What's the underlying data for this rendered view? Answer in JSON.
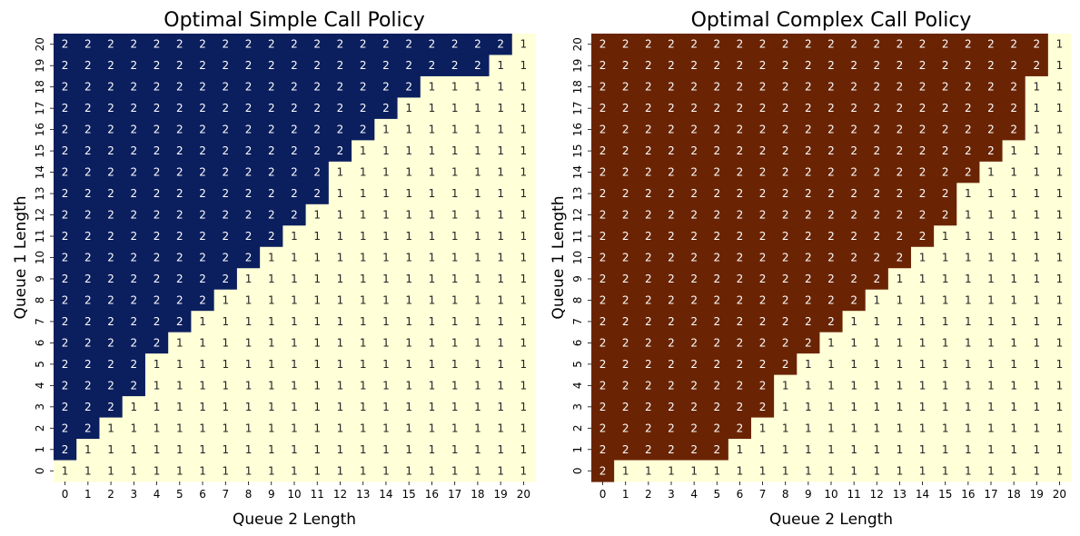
{
  "colors": {
    "simple_two": "#0b1f5e",
    "complex_two": "#6a2404",
    "one": "#ffffd8",
    "text_on_dark": "#ffffff",
    "text_on_light": "#222222"
  },
  "chart_data": [
    {
      "type": "heatmap",
      "title": "Optimal Simple Call Policy",
      "xlabel": "Queue 2 Length",
      "ylabel": "Queue 1 Length",
      "x": [
        0,
        1,
        2,
        3,
        4,
        5,
        6,
        7,
        8,
        9,
        10,
        11,
        12,
        13,
        14,
        15,
        16,
        17,
        18,
        19,
        20
      ],
      "y": [
        20,
        19,
        18,
        17,
        16,
        15,
        14,
        13,
        12,
        11,
        10,
        9,
        8,
        7,
        6,
        5,
        4,
        3,
        2,
        1,
        0
      ],
      "values": [
        [
          2,
          2,
          2,
          2,
          2,
          2,
          2,
          2,
          2,
          2,
          2,
          2,
          2,
          2,
          2,
          2,
          2,
          2,
          2,
          2,
          1
        ],
        [
          2,
          2,
          2,
          2,
          2,
          2,
          2,
          2,
          2,
          2,
          2,
          2,
          2,
          2,
          2,
          2,
          2,
          2,
          2,
          1,
          1
        ],
        [
          2,
          2,
          2,
          2,
          2,
          2,
          2,
          2,
          2,
          2,
          2,
          2,
          2,
          2,
          2,
          2,
          1,
          1,
          1,
          1,
          1
        ],
        [
          2,
          2,
          2,
          2,
          2,
          2,
          2,
          2,
          2,
          2,
          2,
          2,
          2,
          2,
          2,
          1,
          1,
          1,
          1,
          1,
          1
        ],
        [
          2,
          2,
          2,
          2,
          2,
          2,
          2,
          2,
          2,
          2,
          2,
          2,
          2,
          2,
          1,
          1,
          1,
          1,
          1,
          1,
          1
        ],
        [
          2,
          2,
          2,
          2,
          2,
          2,
          2,
          2,
          2,
          2,
          2,
          2,
          2,
          1,
          1,
          1,
          1,
          1,
          1,
          1,
          1
        ],
        [
          2,
          2,
          2,
          2,
          2,
          2,
          2,
          2,
          2,
          2,
          2,
          2,
          1,
          1,
          1,
          1,
          1,
          1,
          1,
          1,
          1
        ],
        [
          2,
          2,
          2,
          2,
          2,
          2,
          2,
          2,
          2,
          2,
          2,
          2,
          1,
          1,
          1,
          1,
          1,
          1,
          1,
          1,
          1
        ],
        [
          2,
          2,
          2,
          2,
          2,
          2,
          2,
          2,
          2,
          2,
          2,
          1,
          1,
          1,
          1,
          1,
          1,
          1,
          1,
          1,
          1
        ],
        [
          2,
          2,
          2,
          2,
          2,
          2,
          2,
          2,
          2,
          2,
          1,
          1,
          1,
          1,
          1,
          1,
          1,
          1,
          1,
          1,
          1
        ],
        [
          2,
          2,
          2,
          2,
          2,
          2,
          2,
          2,
          2,
          1,
          1,
          1,
          1,
          1,
          1,
          1,
          1,
          1,
          1,
          1,
          1
        ],
        [
          2,
          2,
          2,
          2,
          2,
          2,
          2,
          2,
          1,
          1,
          1,
          1,
          1,
          1,
          1,
          1,
          1,
          1,
          1,
          1,
          1
        ],
        [
          2,
          2,
          2,
          2,
          2,
          2,
          2,
          1,
          1,
          1,
          1,
          1,
          1,
          1,
          1,
          1,
          1,
          1,
          1,
          1,
          1
        ],
        [
          2,
          2,
          2,
          2,
          2,
          2,
          1,
          1,
          1,
          1,
          1,
          1,
          1,
          1,
          1,
          1,
          1,
          1,
          1,
          1,
          1
        ],
        [
          2,
          2,
          2,
          2,
          2,
          1,
          1,
          1,
          1,
          1,
          1,
          1,
          1,
          1,
          1,
          1,
          1,
          1,
          1,
          1,
          1
        ],
        [
          2,
          2,
          2,
          2,
          1,
          1,
          1,
          1,
          1,
          1,
          1,
          1,
          1,
          1,
          1,
          1,
          1,
          1,
          1,
          1,
          1
        ],
        [
          2,
          2,
          2,
          2,
          1,
          1,
          1,
          1,
          1,
          1,
          1,
          1,
          1,
          1,
          1,
          1,
          1,
          1,
          1,
          1,
          1
        ],
        [
          2,
          2,
          2,
          1,
          1,
          1,
          1,
          1,
          1,
          1,
          1,
          1,
          1,
          1,
          1,
          1,
          1,
          1,
          1,
          1,
          1
        ],
        [
          2,
          2,
          1,
          1,
          1,
          1,
          1,
          1,
          1,
          1,
          1,
          1,
          1,
          1,
          1,
          1,
          1,
          1,
          1,
          1,
          1
        ],
        [
          2,
          1,
          1,
          1,
          1,
          1,
          1,
          1,
          1,
          1,
          1,
          1,
          1,
          1,
          1,
          1,
          1,
          1,
          1,
          1,
          1
        ],
        [
          1,
          1,
          1,
          1,
          1,
          1,
          1,
          1,
          1,
          1,
          1,
          1,
          1,
          1,
          1,
          1,
          1,
          1,
          1,
          1,
          1
        ]
      ]
    },
    {
      "type": "heatmap",
      "title": "Optimal Complex Call Policy",
      "xlabel": "Queue 2 Length",
      "ylabel": "Queue 1 Length",
      "x": [
        0,
        1,
        2,
        3,
        4,
        5,
        6,
        7,
        8,
        9,
        10,
        11,
        12,
        13,
        14,
        15,
        16,
        17,
        18,
        19,
        20
      ],
      "y": [
        20,
        19,
        18,
        17,
        16,
        15,
        14,
        13,
        12,
        11,
        10,
        9,
        8,
        7,
        6,
        5,
        4,
        3,
        2,
        1,
        0
      ],
      "values": [
        [
          2,
          2,
          2,
          2,
          2,
          2,
          2,
          2,
          2,
          2,
          2,
          2,
          2,
          2,
          2,
          2,
          2,
          2,
          2,
          2,
          1
        ],
        [
          2,
          2,
          2,
          2,
          2,
          2,
          2,
          2,
          2,
          2,
          2,
          2,
          2,
          2,
          2,
          2,
          2,
          2,
          2,
          2,
          1
        ],
        [
          2,
          2,
          2,
          2,
          2,
          2,
          2,
          2,
          2,
          2,
          2,
          2,
          2,
          2,
          2,
          2,
          2,
          2,
          2,
          1,
          1
        ],
        [
          2,
          2,
          2,
          2,
          2,
          2,
          2,
          2,
          2,
          2,
          2,
          2,
          2,
          2,
          2,
          2,
          2,
          2,
          2,
          1,
          1
        ],
        [
          2,
          2,
          2,
          2,
          2,
          2,
          2,
          2,
          2,
          2,
          2,
          2,
          2,
          2,
          2,
          2,
          2,
          2,
          2,
          1,
          1
        ],
        [
          2,
          2,
          2,
          2,
          2,
          2,
          2,
          2,
          2,
          2,
          2,
          2,
          2,
          2,
          2,
          2,
          2,
          2,
          1,
          1,
          1
        ],
        [
          2,
          2,
          2,
          2,
          2,
          2,
          2,
          2,
          2,
          2,
          2,
          2,
          2,
          2,
          2,
          2,
          2,
          1,
          1,
          1,
          1
        ],
        [
          2,
          2,
          2,
          2,
          2,
          2,
          2,
          2,
          2,
          2,
          2,
          2,
          2,
          2,
          2,
          2,
          1,
          1,
          1,
          1,
          1
        ],
        [
          2,
          2,
          2,
          2,
          2,
          2,
          2,
          2,
          2,
          2,
          2,
          2,
          2,
          2,
          2,
          2,
          1,
          1,
          1,
          1,
          1
        ],
        [
          2,
          2,
          2,
          2,
          2,
          2,
          2,
          2,
          2,
          2,
          2,
          2,
          2,
          2,
          2,
          1,
          1,
          1,
          1,
          1,
          1
        ],
        [
          2,
          2,
          2,
          2,
          2,
          2,
          2,
          2,
          2,
          2,
          2,
          2,
          2,
          2,
          1,
          1,
          1,
          1,
          1,
          1,
          1
        ],
        [
          2,
          2,
          2,
          2,
          2,
          2,
          2,
          2,
          2,
          2,
          2,
          2,
          2,
          1,
          1,
          1,
          1,
          1,
          1,
          1,
          1
        ],
        [
          2,
          2,
          2,
          2,
          2,
          2,
          2,
          2,
          2,
          2,
          2,
          2,
          1,
          1,
          1,
          1,
          1,
          1,
          1,
          1,
          1
        ],
        [
          2,
          2,
          2,
          2,
          2,
          2,
          2,
          2,
          2,
          2,
          2,
          1,
          1,
          1,
          1,
          1,
          1,
          1,
          1,
          1,
          1
        ],
        [
          2,
          2,
          2,
          2,
          2,
          2,
          2,
          2,
          2,
          2,
          1,
          1,
          1,
          1,
          1,
          1,
          1,
          1,
          1,
          1,
          1
        ],
        [
          2,
          2,
          2,
          2,
          2,
          2,
          2,
          2,
          2,
          1,
          1,
          1,
          1,
          1,
          1,
          1,
          1,
          1,
          1,
          1,
          1
        ],
        [
          2,
          2,
          2,
          2,
          2,
          2,
          2,
          2,
          1,
          1,
          1,
          1,
          1,
          1,
          1,
          1,
          1,
          1,
          1,
          1,
          1
        ],
        [
          2,
          2,
          2,
          2,
          2,
          2,
          2,
          2,
          1,
          1,
          1,
          1,
          1,
          1,
          1,
          1,
          1,
          1,
          1,
          1,
          1
        ],
        [
          2,
          2,
          2,
          2,
          2,
          2,
          2,
          1,
          1,
          1,
          1,
          1,
          1,
          1,
          1,
          1,
          1,
          1,
          1,
          1,
          1
        ],
        [
          2,
          2,
          2,
          2,
          2,
          2,
          1,
          1,
          1,
          1,
          1,
          1,
          1,
          1,
          1,
          1,
          1,
          1,
          1,
          1,
          1
        ],
        [
          2,
          1,
          1,
          1,
          1,
          1,
          1,
          1,
          1,
          1,
          1,
          1,
          1,
          1,
          1,
          1,
          1,
          1,
          1,
          1,
          1
        ]
      ]
    }
  ]
}
